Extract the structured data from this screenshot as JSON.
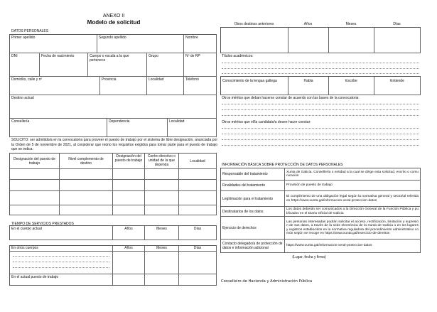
{
  "title": "ANEXO II",
  "subtitle": "Modelo de solicitud",
  "personal": {
    "heading": "DATOS PERSONALES",
    "primer_apellido": "Primer apellido",
    "segundo_apellido": "Segundo apellido",
    "nombre": "Nombre",
    "dni": "DNI",
    "fecha": "Fecha de nacimiento",
    "cuerpo": "Cuerpo o escala a la que pertenece",
    "grupo": "Grupo",
    "nrp": "Nº de RP",
    "domicilio": "Domicilio, calle y nº",
    "provincia": "Provincia",
    "localidad": "Localidad",
    "telefono": "Teléfono",
    "destino": "Destino actual",
    "conselleria": "Consellería",
    "dependencia": "Dependencia",
    "localidad2": "Localidad"
  },
  "solicito": "SOLICITO: ser admitido/a en la convocatoria para proveer el puesto de trabajo por el sistema de libre designación, anunciada por la Orden de 5 de noviembre de 2021, al considerar que reúno los requisitos exigidos para tomar parte para el puesto de trabajo que se indica:",
  "puestos": {
    "headers": [
      "Designación del puesto de trabajo",
      "Nivel complemento de destino",
      "Designación del puesto de trabajo",
      "Centro directivo o unidad de la que dependa",
      "Localidad"
    ]
  },
  "servicios": {
    "heading": "TIEMPO DE SERVICIOS PRESTADOS",
    "cuerpo_actual": "En el cuerpo actual",
    "otros_cuerpos": "En otros cuerpos",
    "actual_puesto": "En el actual puesto de trabajo",
    "anos": "Años",
    "meses": "Meses",
    "dias": "Días"
  },
  "otros_destinos": "Otros destinos anteriores",
  "titulos": "Títulos académicos:",
  "lengua": {
    "label": "Conocimiento de la lengua gallega",
    "habla": "Habla",
    "escribe": "Escribe",
    "entiende": "Entiende"
  },
  "meritos1": "Otros méritos que deban hacerse constar de acuerdo con las bases de la convocatoria:",
  "meritos2": "Otros méritos que el/la candidato/a desee hacer constar:",
  "proteccion": {
    "heading": "INFORMACIÓN BÁSICA SOBRE PROTECCIÓN DE DATOS PERSONALES",
    "rows": [
      [
        "Responsable del tratamiento",
        "Xunta de Galicia. Consellería o entidad a la cual se dirige esta solicitud, escrito o comunicación"
      ],
      [
        "Finalidades del tratamiento",
        "Provisión de puesto de trabajo"
      ],
      [
        "Legitimación para el tratamiento",
        "El cumplimiento de una obligación legal según la normativa general y sectorial referida en https://www.xunta.gal/informacion-xeral-proteccion-datos"
      ],
      [
        "Destinatarios de los datos",
        "Los datos deberán ser comunicados a la Dirección General de la Función Pública y publicados en el Diario Oficial de Galicia"
      ],
      [
        "Ejercicio de derechos",
        "Las personas interesadas podrán solicitar el acceso, rectificación, limitación y supresión de sus datos, a través de la sede electrónica de la Xunta de Galicia o en los lugares y registros establecidos en la normativa reguladora del procedimiento administrativo común según se recoge en https://www.xunta.gal/exercicio-de-dereitos"
      ],
      [
        "Contacto delegado/a de protección de datos e información adicional",
        "https://www.xunta.gal/informacion-xeral-proteccion-datos"
      ]
    ]
  },
  "firma": "(Lugar, fecha y firma)",
  "destinatario": "Conselleiro de Hacienda y Administración Pública"
}
